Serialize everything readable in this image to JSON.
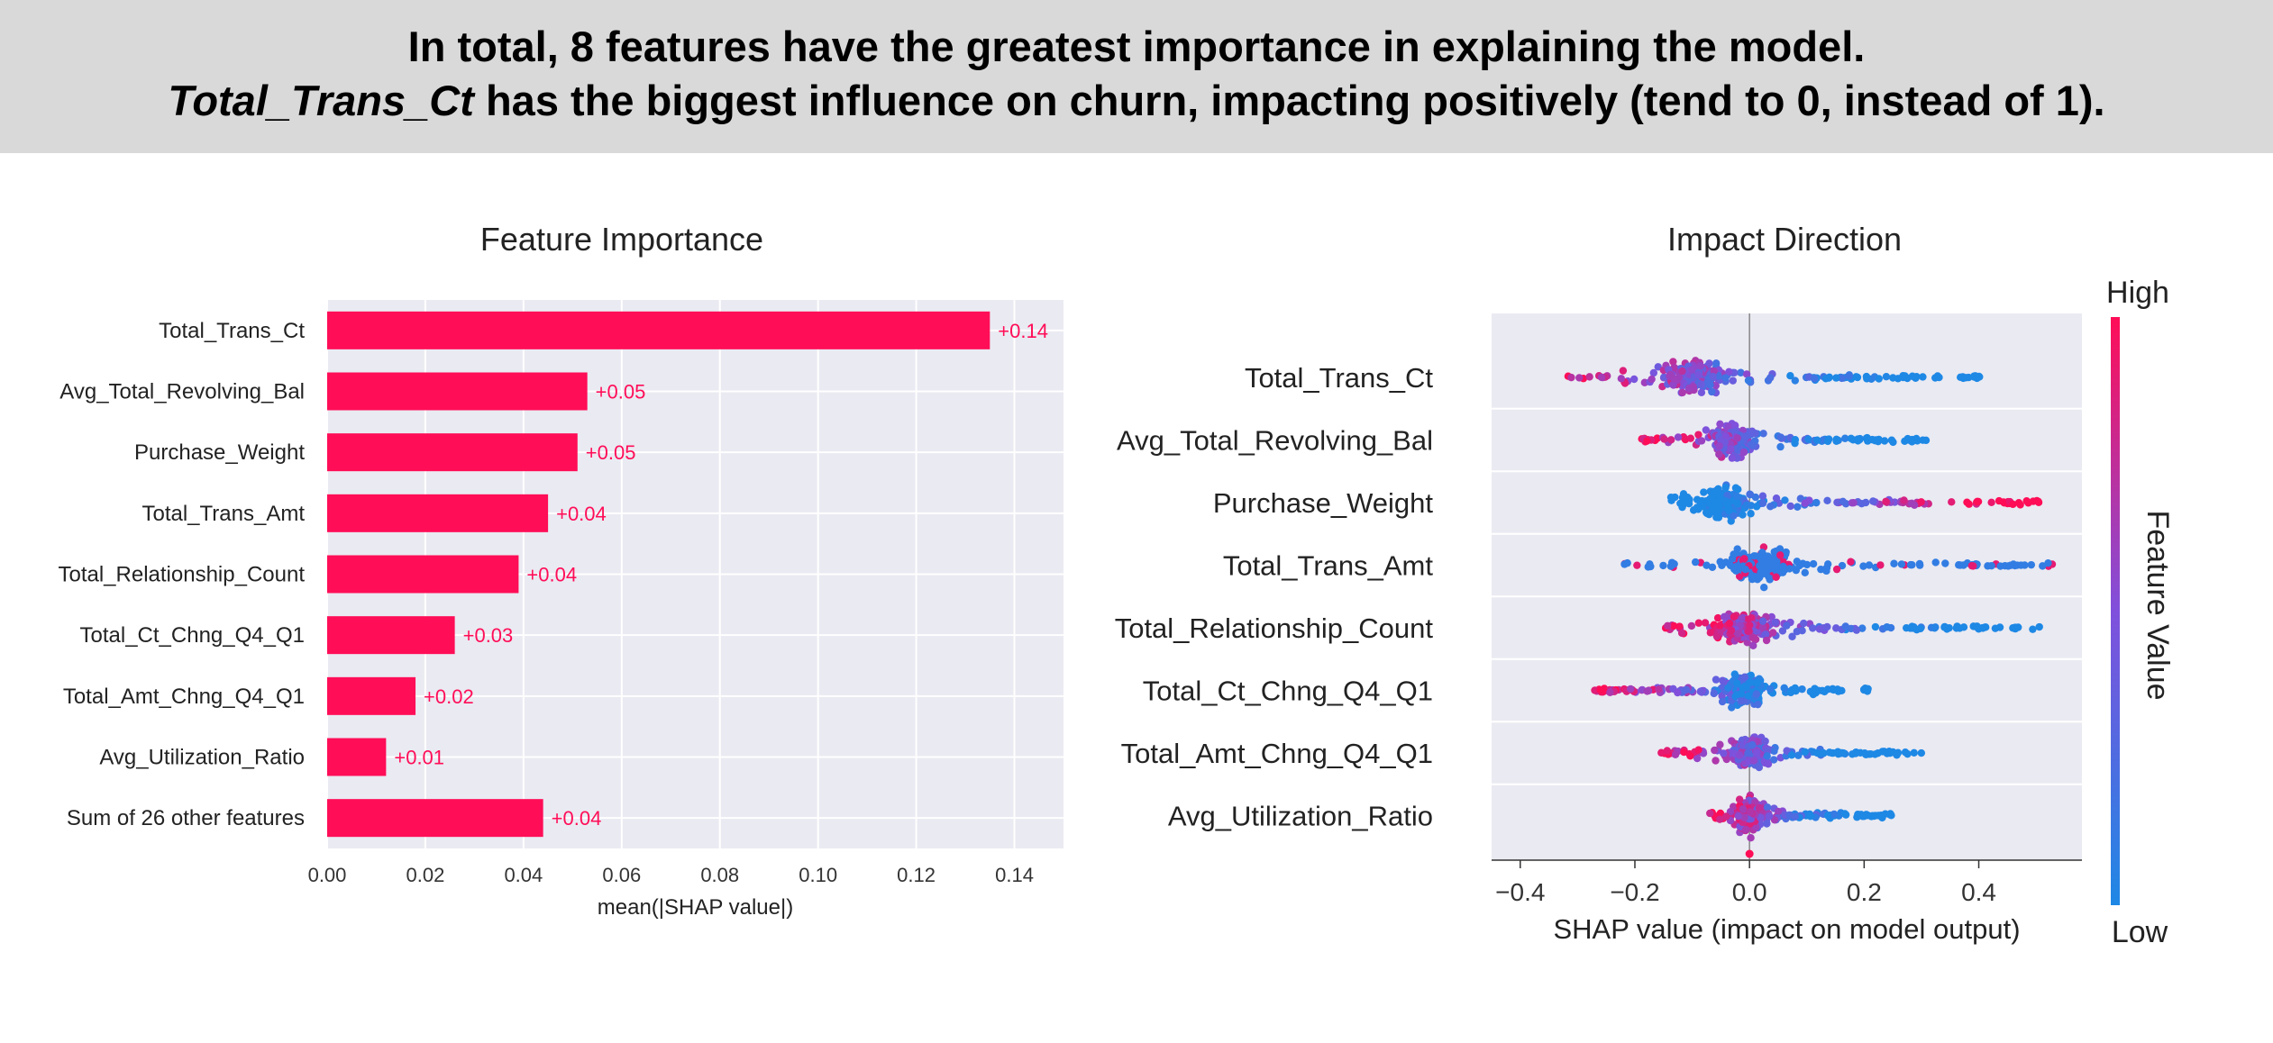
{
  "headline": {
    "line1": "In total, 8 features have the greatest importance in explaining the model.",
    "line2_emph": "Total_Trans_Ct",
    "line2_rest": " has the biggest influence on churn, impacting positively (tend to 0, instead of 1)."
  },
  "colors": {
    "bar": "#ff0d57",
    "high": "#ff0d57",
    "low": "#1e88e5",
    "plot_bg": "#eaeaf2"
  },
  "chart_data": [
    {
      "type": "bar",
      "title": "Feature Importance",
      "categories": [
        "Total_Trans_Ct",
        "Avg_Total_Revolving_Bal",
        "Purchase_Weight",
        "Total_Trans_Amt",
        "Total_Relationship_Count",
        "Total_Ct_Chng_Q4_Q1",
        "Total_Amt_Chng_Q4_Q1",
        "Avg_Utilization_Ratio",
        "Sum of 26 other features"
      ],
      "values": [
        0.135,
        0.053,
        0.051,
        0.045,
        0.039,
        0.026,
        0.018,
        0.012,
        0.044
      ],
      "data_labels": [
        "+0.14",
        "+0.05",
        "+0.05",
        "+0.04",
        "+0.04",
        "+0.03",
        "+0.02",
        "+0.01",
        "+0.04"
      ],
      "xlabel": "mean(|SHAP value|)",
      "xlim": [
        0,
        0.15
      ],
      "xticks": [
        0.0,
        0.02,
        0.04,
        0.06,
        0.08,
        0.1,
        0.12,
        0.14
      ],
      "xtick_labels": [
        "0.00",
        "0.02",
        "0.04",
        "0.06",
        "0.08",
        "0.10",
        "0.12",
        "0.14"
      ],
      "grid": true
    },
    {
      "type": "scatter",
      "title": "Impact Direction",
      "categories": [
        "Total_Trans_Ct",
        "Avg_Total_Revolving_Bal",
        "Purchase_Weight",
        "Total_Trans_Amt",
        "Total_Relationship_Count",
        "Total_Ct_Chng_Q4_Q1",
        "Total_Amt_Chng_Q4_Q1",
        "Avg_Utilization_Ratio"
      ],
      "xlabel": "SHAP value (impact on model output)",
      "xlim": [
        -0.45,
        0.58
      ],
      "xticks": [
        -0.4,
        -0.2,
        0.0,
        0.2,
        0.4
      ],
      "xtick_labels": [
        "−0.4",
        "−0.2",
        "0.0",
        "0.2",
        "0.4"
      ],
      "colorbar": {
        "label": "Feature Value",
        "high": "High",
        "low": "Low"
      },
      "feature_spreads": [
        {
          "feature": "Total_Trans_Ct",
          "min": -0.34,
          "max": 0.43,
          "high_side": "left",
          "peak": -0.1
        },
        {
          "feature": "Avg_Total_Revolving_Bal",
          "min": -0.19,
          "max": 0.31,
          "high_side": "left",
          "peak": -0.03
        },
        {
          "feature": "Purchase_Weight",
          "min": -0.14,
          "max": 0.51,
          "high_side": "right",
          "peak": -0.04
        },
        {
          "feature": "Total_Trans_Amt",
          "min": -0.22,
          "max": 0.54,
          "high_side": "mixed",
          "peak": 0.02
        },
        {
          "feature": "Total_Relationship_Count",
          "min": -0.15,
          "max": 0.51,
          "high_side": "left",
          "peak": -0.01
        },
        {
          "feature": "Total_Ct_Chng_Q4_Q1",
          "min": -0.27,
          "max": 0.21,
          "high_side": "left",
          "peak": -0.01
        },
        {
          "feature": "Total_Amt_Chng_Q4_Q1",
          "min": -0.16,
          "max": 0.3,
          "high_side": "left",
          "peak": 0.0
        },
        {
          "feature": "Avg_Utilization_Ratio",
          "min": -0.07,
          "max": 0.25,
          "high_side": "left",
          "peak": 0.0
        }
      ]
    }
  ]
}
